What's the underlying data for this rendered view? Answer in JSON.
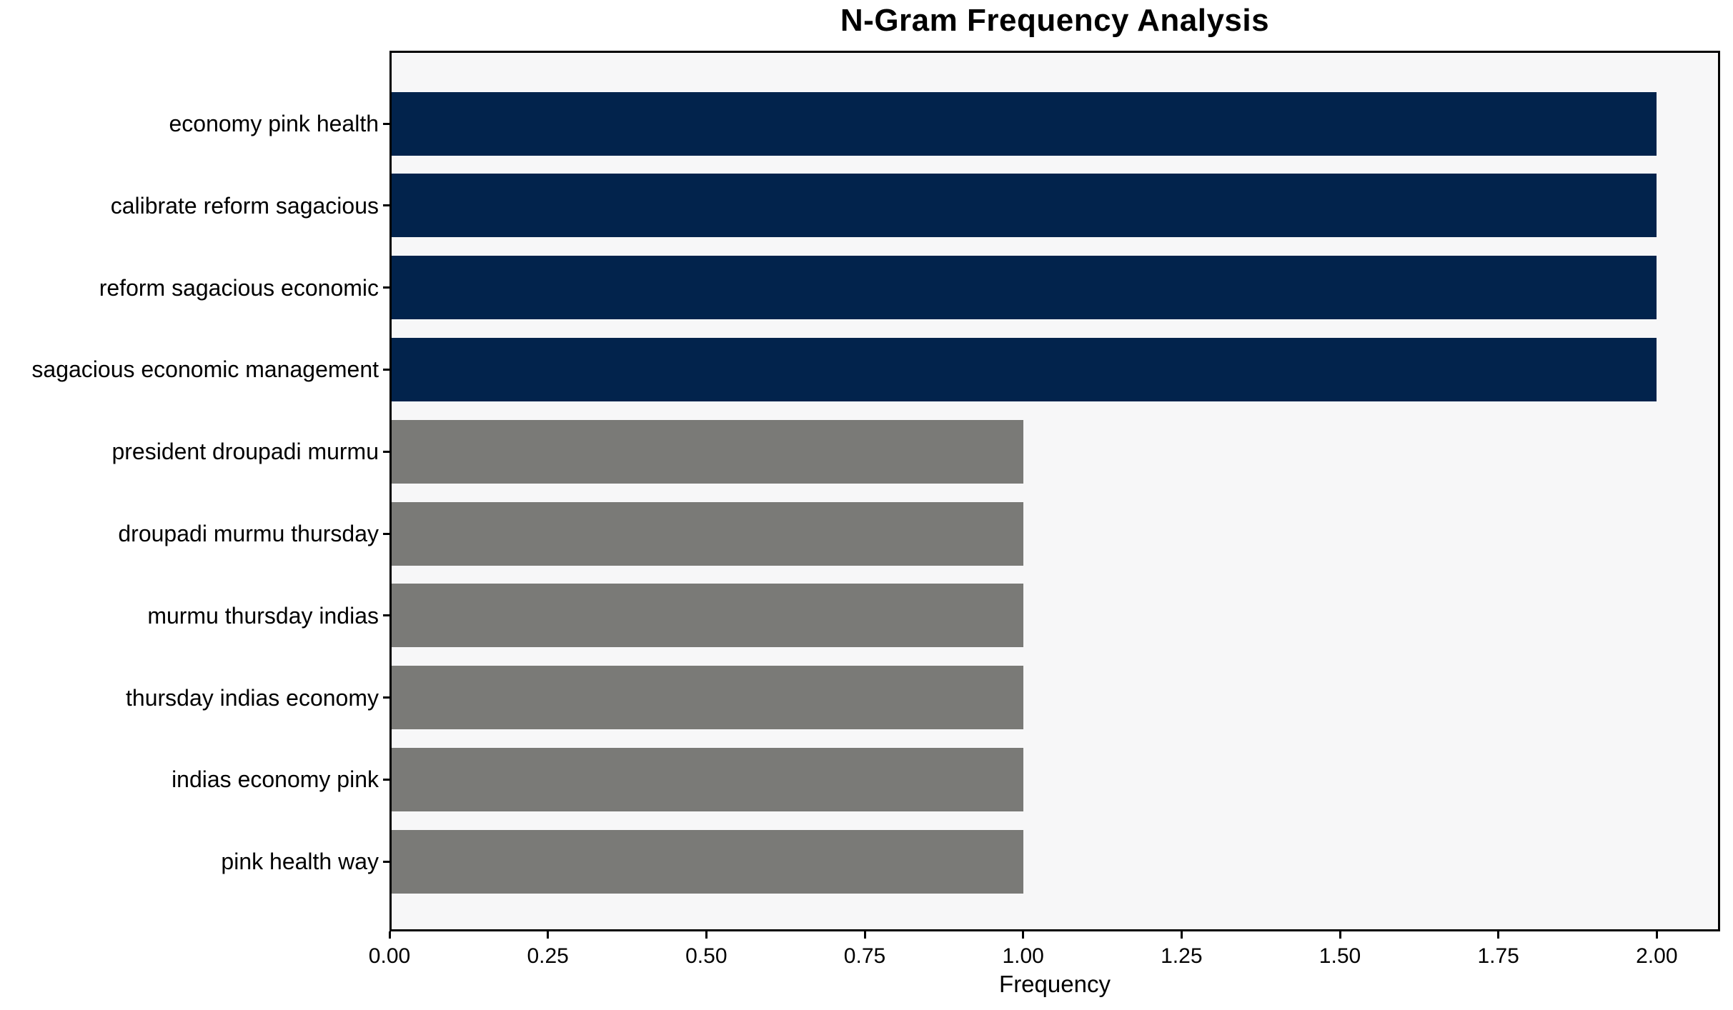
{
  "figure": {
    "background_color": "#ffffff",
    "plot_background_color": "#f7f7f8",
    "spine_color": "#000000"
  },
  "chart_data": {
    "type": "bar",
    "orientation": "horizontal",
    "title": "N-Gram Frequency Analysis",
    "xlabel": "Frequency",
    "ylabel": "",
    "categories": [
      "economy pink health",
      "calibrate reform sagacious",
      "reform sagacious economic",
      "sagacious economic management",
      "president droupadi murmu",
      "droupadi murmu thursday",
      "murmu thursday indias",
      "thursday indias economy",
      "indias economy pink",
      "pink health way"
    ],
    "values": [
      2,
      2,
      2,
      2,
      1,
      1,
      1,
      1,
      1,
      1
    ],
    "bar_colors": [
      "#02234c",
      "#02234c",
      "#02234c",
      "#02234c",
      "#7a7a77",
      "#7a7a77",
      "#7a7a77",
      "#7a7a77",
      "#7a7a77",
      "#7a7a77"
    ],
    "highlight_color": "#02234c",
    "default_color": "#7a7a77",
    "x_ticks": [
      0,
      0.25,
      0.5,
      0.75,
      1.0,
      1.25,
      1.5,
      1.75,
      2.0
    ],
    "x_tick_labels": [
      "0.00",
      "0.25",
      "0.50",
      "0.75",
      "1.00",
      "1.25",
      "1.50",
      "1.75",
      "2.00"
    ],
    "xlim": [
      0,
      2.1
    ],
    "grid": false,
    "legend": null
  }
}
